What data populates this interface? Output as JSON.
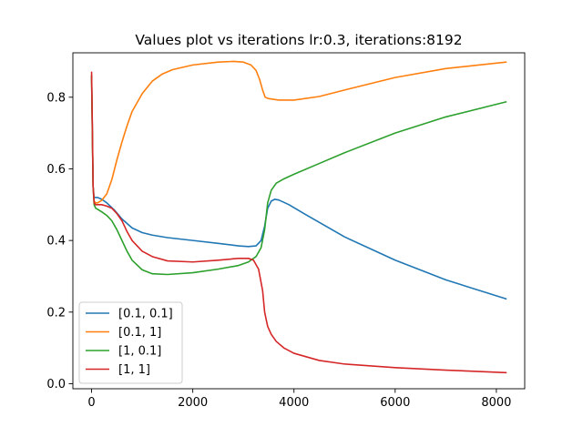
{
  "chart_data": {
    "type": "line",
    "title": "Values plot vs iterations lr:0.3, iterations:8192",
    "xlabel": "",
    "ylabel": "",
    "xlim": [
      -370,
      8560
    ],
    "ylim": [
      -0.014,
      0.924
    ],
    "xticks": [
      0,
      2000,
      4000,
      6000,
      8000
    ],
    "xtick_labels": [
      "0",
      "2000",
      "4000",
      "6000",
      "8000"
    ],
    "yticks": [
      0.0,
      0.2,
      0.4,
      0.6,
      0.8
    ],
    "ytick_labels": [
      "0.0",
      "0.2",
      "0.4",
      "0.6",
      "0.8"
    ],
    "grid": false,
    "legend_position": "lower-left",
    "series": [
      {
        "name": "[0.1, 0.1]",
        "color": "#1f77b4",
        "x": [
          0,
          15,
          30,
          50,
          80,
          120,
          200,
          300,
          450,
          600,
          800,
          1000,
          1200,
          1500,
          2000,
          2500,
          2900,
          3100,
          3250,
          3350,
          3420,
          3480,
          3550,
          3620,
          3700,
          3900,
          4200,
          5000,
          6000,
          7000,
          8192
        ],
        "values": [
          0.86,
          0.7,
          0.55,
          0.52,
          0.52,
          0.52,
          0.515,
          0.505,
          0.485,
          0.46,
          0.435,
          0.422,
          0.415,
          0.408,
          0.4,
          0.392,
          0.385,
          0.383,
          0.385,
          0.4,
          0.44,
          0.49,
          0.51,
          0.515,
          0.513,
          0.5,
          0.475,
          0.41,
          0.345,
          0.29,
          0.237
        ]
      },
      {
        "name": "[0.1, 1]",
        "color": "#ff7f0e",
        "x": [
          0,
          15,
          30,
          50,
          80,
          120,
          200,
          300,
          400,
          500,
          600,
          700,
          800,
          1000,
          1200,
          1400,
          1600,
          2000,
          2500,
          2800,
          3000,
          3150,
          3250,
          3320,
          3380,
          3430,
          3500,
          3700,
          4000,
          4500,
          5000,
          6000,
          7000,
          8192
        ],
        "values": [
          0.86,
          0.7,
          0.55,
          0.51,
          0.505,
          0.505,
          0.512,
          0.53,
          0.57,
          0.625,
          0.675,
          0.72,
          0.76,
          0.81,
          0.845,
          0.865,
          0.877,
          0.89,
          0.898,
          0.9,
          0.898,
          0.89,
          0.875,
          0.85,
          0.82,
          0.8,
          0.796,
          0.792,
          0.792,
          0.802,
          0.82,
          0.855,
          0.88,
          0.898
        ]
      },
      {
        "name": "[1, 0.1]",
        "color": "#2ca02c",
        "x": [
          0,
          15,
          30,
          50,
          80,
          120,
          200,
          300,
          400,
          500,
          600,
          700,
          800,
          1000,
          1200,
          1500,
          2000,
          2500,
          2900,
          3100,
          3250,
          3350,
          3420,
          3480,
          3550,
          3650,
          3800,
          4000,
          4500,
          5000,
          6000,
          7000,
          8192
        ],
        "values": [
          0.86,
          0.7,
          0.55,
          0.5,
          0.49,
          0.487,
          0.48,
          0.47,
          0.455,
          0.43,
          0.4,
          0.37,
          0.345,
          0.318,
          0.307,
          0.305,
          0.31,
          0.32,
          0.33,
          0.34,
          0.355,
          0.38,
          0.43,
          0.505,
          0.54,
          0.56,
          0.572,
          0.585,
          0.615,
          0.645,
          0.7,
          0.745,
          0.787
        ]
      },
      {
        "name": "[1, 1]",
        "color": "#d62728",
        "x": [
          0,
          15,
          30,
          50,
          80,
          120,
          200,
          300,
          400,
          500,
          600,
          700,
          800,
          1000,
          1200,
          1500,
          2000,
          2500,
          2900,
          3100,
          3200,
          3300,
          3380,
          3420,
          3480,
          3550,
          3650,
          3800,
          4000,
          4500,
          5000,
          6000,
          7000,
          8192
        ],
        "values": [
          0.87,
          0.72,
          0.55,
          0.505,
          0.5,
          0.5,
          0.5,
          0.496,
          0.49,
          0.475,
          0.455,
          0.425,
          0.4,
          0.37,
          0.355,
          0.343,
          0.34,
          0.345,
          0.35,
          0.35,
          0.345,
          0.32,
          0.26,
          0.2,
          0.16,
          0.138,
          0.118,
          0.1,
          0.085,
          0.065,
          0.055,
          0.045,
          0.038,
          0.031
        ]
      }
    ]
  }
}
